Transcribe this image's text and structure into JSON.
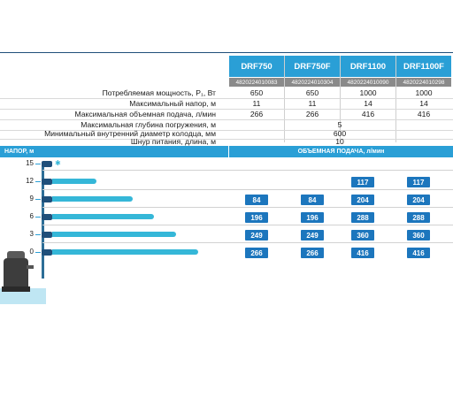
{
  "models": [
    {
      "name": "DRF750",
      "code": "4820224010083"
    },
    {
      "name": "DRF750F",
      "code": "4820224010304"
    },
    {
      "name": "DRF1100",
      "code": "4820224010090"
    },
    {
      "name": "DRF1100F",
      "code": "4820224010298"
    }
  ],
  "specs": [
    {
      "label": "Потребляемая мощность, P₁, Вт",
      "values": [
        "650",
        "650",
        "1000",
        "1000"
      ]
    },
    {
      "label": "Максимальный напор, м",
      "values": [
        "11",
        "11",
        "14",
        "14"
      ]
    },
    {
      "label": "Максимальная объемная подача, л/мин",
      "values": [
        "266",
        "266",
        "416",
        "416"
      ]
    }
  ],
  "shared_specs": [
    {
      "label": "Максимальная глубина погружения, м",
      "value": "5"
    },
    {
      "label": "Минимальный внутренний диаметр колодца, мм",
      "value": "600"
    },
    {
      "label": "Шнур питания, длина, м",
      "value": "10"
    }
  ],
  "performance": {
    "head_label": "НАПОР, м",
    "flow_label": "ОБЪЕМНАЯ ПОДАЧА, л/мин",
    "rows": [
      {
        "head": "15",
        "flow": 0,
        "values": [
          "",
          "",
          "",
          ""
        ]
      },
      {
        "head": "12",
        "flow": 0.3,
        "values": [
          "",
          "",
          "117",
          "117"
        ]
      },
      {
        "head": "9",
        "flow": 0.55,
        "values": [
          "84",
          "84",
          "204",
          "204"
        ]
      },
      {
        "head": "6",
        "flow": 0.7,
        "values": [
          "196",
          "196",
          "288",
          "288"
        ]
      },
      {
        "head": "3",
        "flow": 0.85,
        "values": [
          "249",
          "249",
          "360",
          "360"
        ]
      },
      {
        "head": "0",
        "flow": 1.0,
        "values": [
          "266",
          "266",
          "416",
          "416"
        ]
      }
    ]
  },
  "colors": {
    "accent": "#2a9fd6",
    "badge": "#1c76bd",
    "code_bg": "#8a8a8a"
  }
}
